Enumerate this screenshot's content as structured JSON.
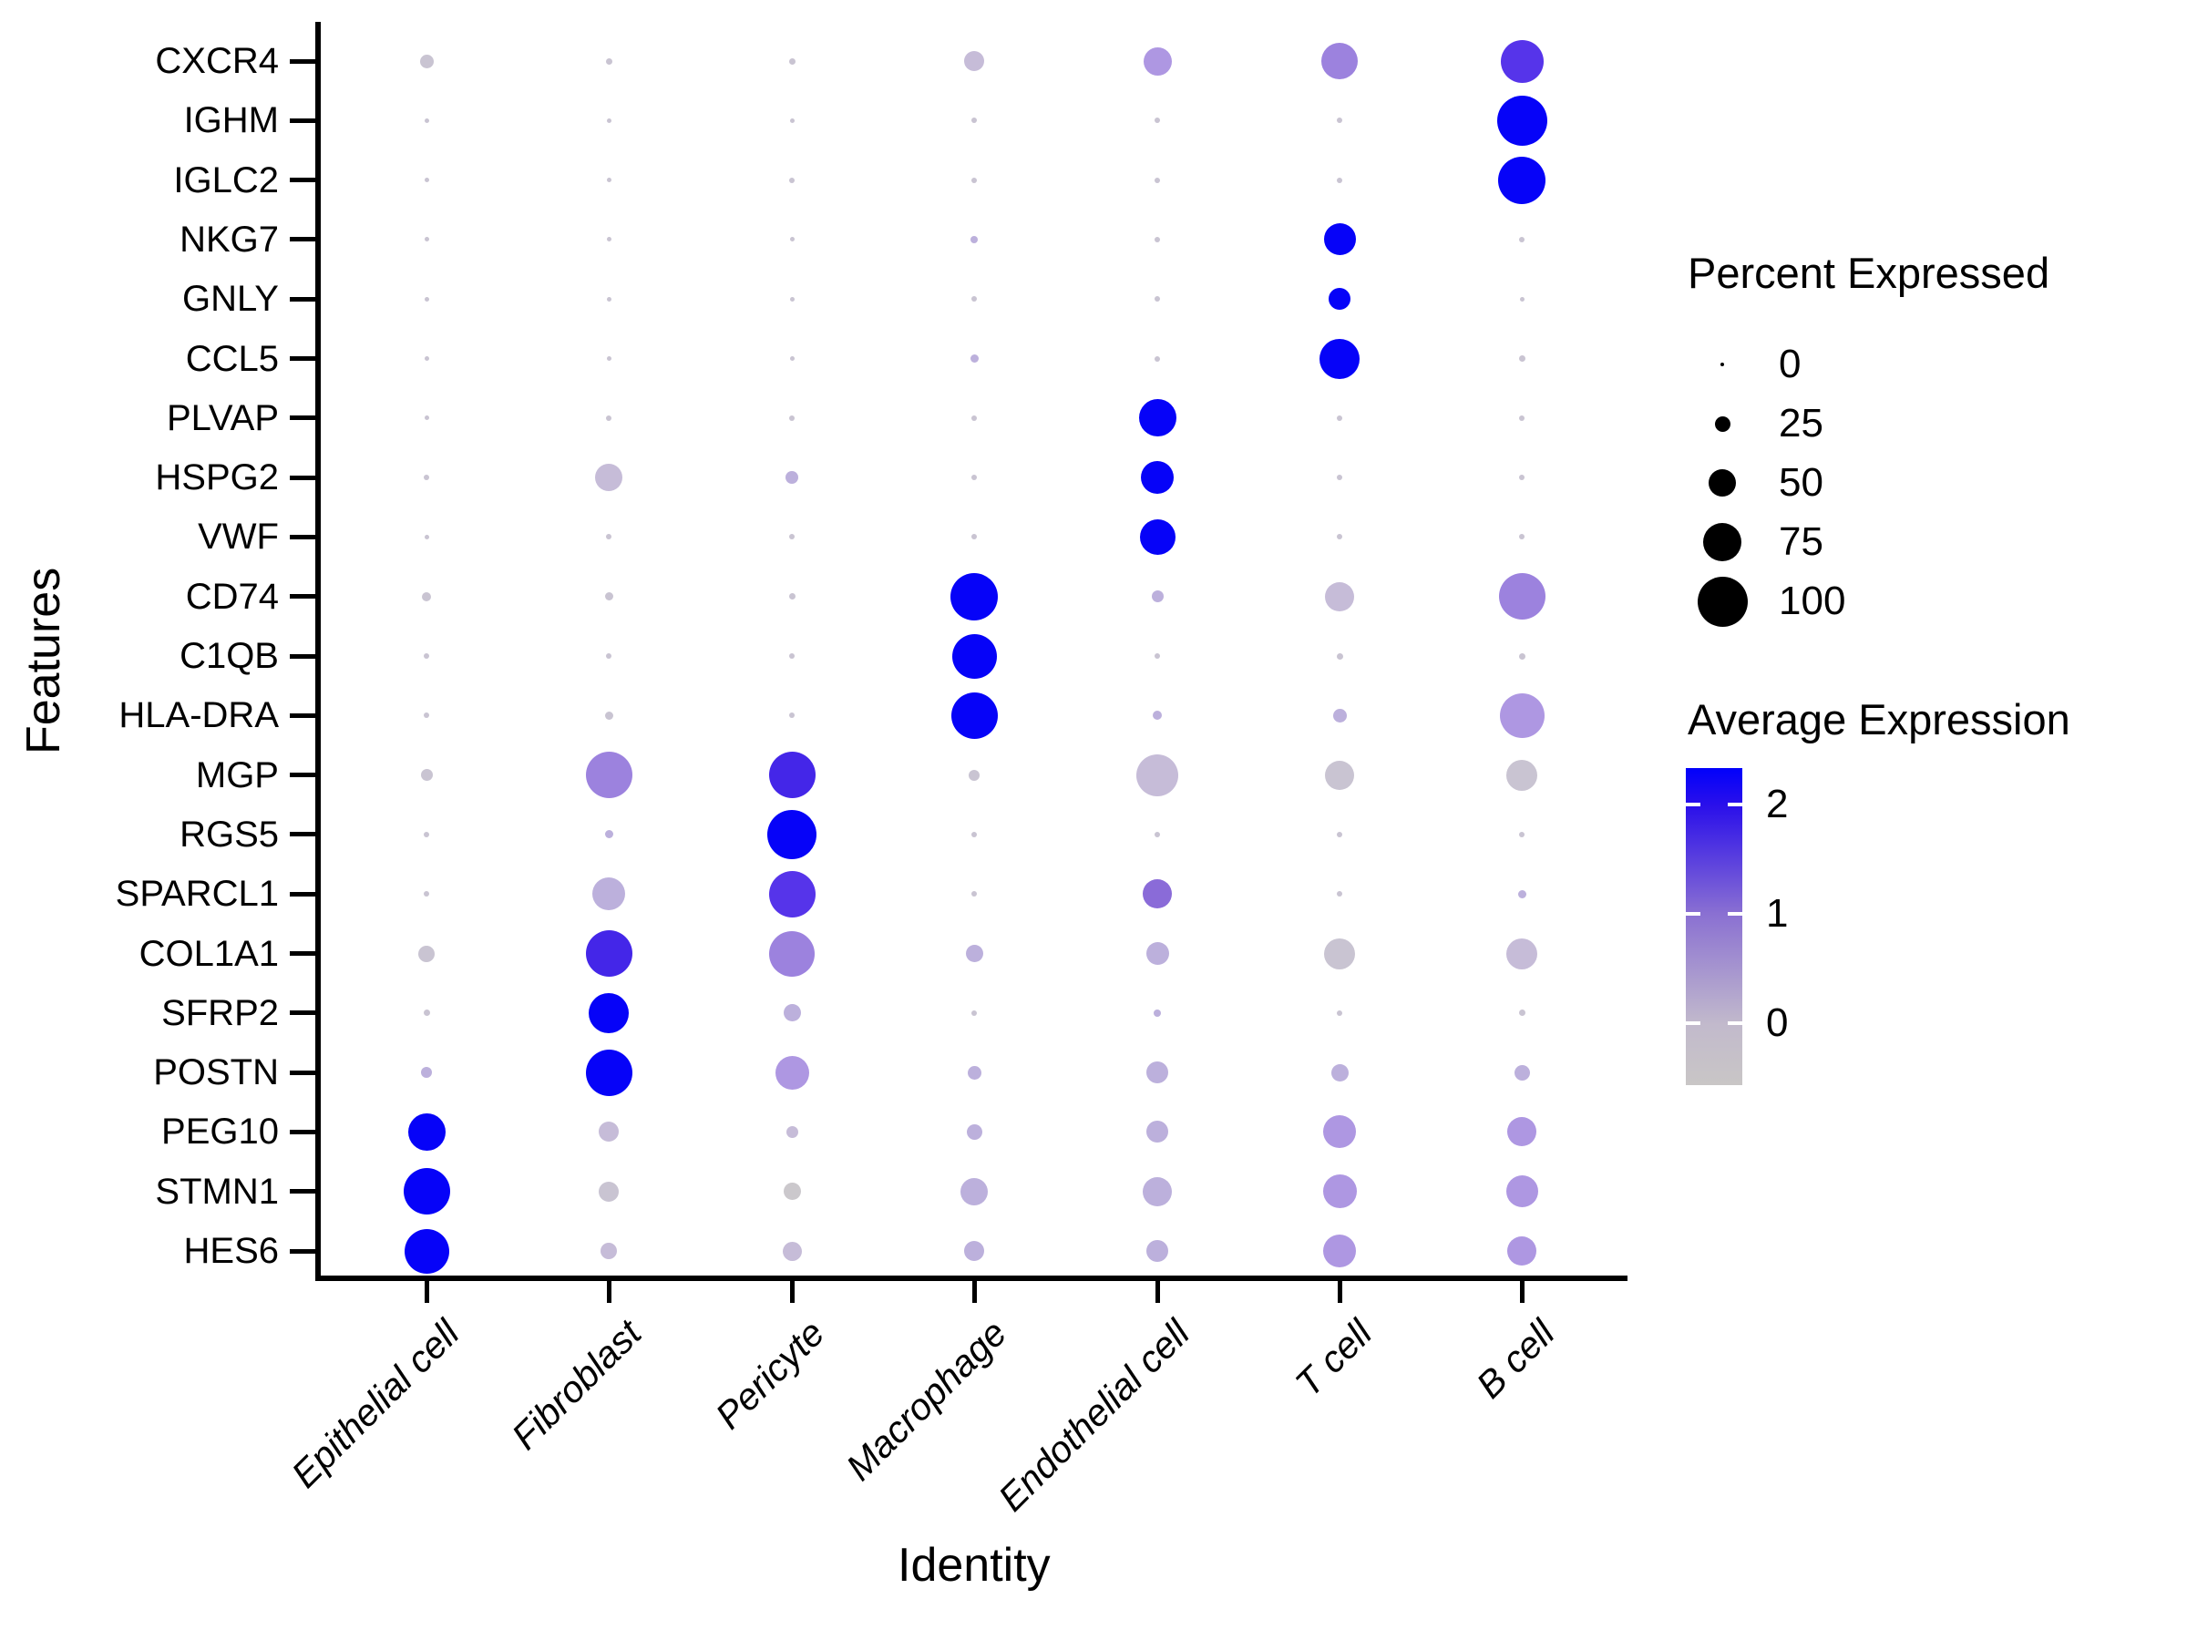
{
  "chart_data": {
    "type": "scatter",
    "subtype": "dotplot",
    "xlabel": "Identity",
    "ylabel": "Features",
    "categories": [
      "Epithelial cell",
      "Fibroblast",
      "Pericyte",
      "Macrophage",
      "Endothelial cell",
      "T cell",
      "B cell"
    ],
    "genes": [
      "CXCR4",
      "IGHM",
      "IGLC2",
      "NKG7",
      "GNLY",
      "CCL5",
      "PLVAP",
      "HSPG2",
      "VWF",
      "CD74",
      "C1QB",
      "HLA-DRA",
      "MGP",
      "RGS5",
      "SPARCL1",
      "COL1A1",
      "SFRP2",
      "POSTN",
      "PEG10",
      "STMN1",
      "HES6"
    ],
    "series": [
      {
        "gene": "CXCR4",
        "percent": [
          22,
          5,
          5,
          35,
          52,
          70,
          85
        ],
        "avg_expr_color": [
          "#C9C4D2",
          "#C9C4D2",
          "#C9C4D2",
          "#C6BCD8",
          "#AE97E2",
          "#9C82DE",
          "#5634EA"
        ]
      },
      {
        "gene": "IGHM",
        "percent": [
          2,
          2,
          2,
          3,
          3,
          4,
          100
        ],
        "avg_expr_color": [
          "#C9C4D2",
          "#C9C4D2",
          "#C9C4D2",
          "#C9C4D2",
          "#C9C4D2",
          "#C9C4D2",
          "#0603F8"
        ]
      },
      {
        "gene": "IGLC2",
        "percent": [
          2,
          2,
          3,
          3,
          3,
          4,
          95
        ],
        "avg_expr_color": [
          "#C9C4D2",
          "#C9C4D2",
          "#C9C4D2",
          "#C9C4D2",
          "#C9C4D2",
          "#C9C4D2",
          "#0603F8"
        ]
      },
      {
        "gene": "NKG7",
        "percent": [
          2,
          2,
          2,
          8,
          3,
          60,
          4
        ],
        "avg_expr_color": [
          "#C9C4D2",
          "#C9C4D2",
          "#C9C4D2",
          "#BCB0DC",
          "#C9C4D2",
          "#0603F8",
          "#C9C4D2"
        ]
      },
      {
        "gene": "GNLY",
        "percent": [
          2,
          2,
          2,
          3,
          3,
          40,
          2
        ],
        "avg_expr_color": [
          "#C9C4D2",
          "#C9C4D2",
          "#C9C4D2",
          "#C9C4D2",
          "#C9C4D2",
          "#0603F8",
          "#C9C4D2"
        ]
      },
      {
        "gene": "CCL5",
        "percent": [
          2,
          2,
          2,
          10,
          4,
          78,
          6
        ],
        "avg_expr_color": [
          "#C9C4D2",
          "#C9C4D2",
          "#C9C4D2",
          "#BCB0DC",
          "#C9C4D2",
          "#0603F8",
          "#C9C4D2"
        ]
      },
      {
        "gene": "PLVAP",
        "percent": [
          2,
          3,
          3,
          4,
          72,
          3,
          3
        ],
        "avg_expr_color": [
          "#C9C4D2",
          "#C9C4D2",
          "#C9C4D2",
          "#C9C4D2",
          "#0603F8",
          "#C9C4D2",
          "#C9C4D2"
        ]
      },
      {
        "gene": "HSPG2",
        "percent": [
          4,
          50,
          20,
          4,
          62,
          3,
          4
        ],
        "avg_expr_color": [
          "#C9C4D2",
          "#C6BCD8",
          "#BCB0DC",
          "#C9C4D2",
          "#0603F8",
          "#C9C4D2",
          "#C9C4D2"
        ]
      },
      {
        "gene": "VWF",
        "percent": [
          2,
          3,
          3,
          4,
          68,
          3,
          3
        ],
        "avg_expr_color": [
          "#C9C4D2",
          "#C9C4D2",
          "#C9C4D2",
          "#C9C4D2",
          "#0603F8",
          "#C9C4D2",
          "#C9C4D2"
        ]
      },
      {
        "gene": "CD74",
        "percent": [
          12,
          10,
          5,
          95,
          18,
          55,
          92
        ],
        "avg_expr_color": [
          "#C9C4D2",
          "#C9C4D2",
          "#C9C4D2",
          "#0603F8",
          "#BCB0DC",
          "#C6BCD8",
          "#9C82DE"
        ]
      },
      {
        "gene": "C1QB",
        "percent": [
          3,
          3,
          3,
          88,
          4,
          6,
          5
        ],
        "avg_expr_color": [
          "#C9C4D2",
          "#C9C4D2",
          "#C9C4D2",
          "#0603F8",
          "#C9C4D2",
          "#C9C4D2",
          "#C9C4D2"
        ]
      },
      {
        "gene": "HLA-DRA",
        "percent": [
          3,
          10,
          4,
          92,
          12,
          22,
          88
        ],
        "avg_expr_color": [
          "#C9C4D2",
          "#C9C4D2",
          "#C9C4D2",
          "#0603F8",
          "#BCB0DC",
          "#BCB0DC",
          "#AE97E2"
        ]
      },
      {
        "gene": "MGP",
        "percent": [
          18,
          92,
          92,
          15,
          82,
          55,
          58
        ],
        "avg_expr_color": [
          "#C9C4D2",
          "#9C82DE",
          "#4426E8",
          "#C9C4D2",
          "#C6BCD8",
          "#C9C4D2",
          "#C9C4D2"
        ]
      },
      {
        "gene": "RGS5",
        "percent": [
          3,
          10,
          98,
          3,
          4,
          3,
          3
        ],
        "avg_expr_color": [
          "#C9C4D2",
          "#BCB0DC",
          "#0603F8",
          "#C9C4D2",
          "#C9C4D2",
          "#C9C4D2",
          "#C9C4D2"
        ]
      },
      {
        "gene": "SPARCL1",
        "percent": [
          3,
          62,
          92,
          4,
          55,
          4,
          10
        ],
        "avg_expr_color": [
          "#C9C4D2",
          "#BCB0DC",
          "#5634EA",
          "#C9C4D2",
          "#8A6BD8",
          "#C9C4D2",
          "#BCB0DC"
        ]
      },
      {
        "gene": "COL1A1",
        "percent": [
          28,
          92,
          90,
          30,
          42,
          58,
          58
        ],
        "avg_expr_color": [
          "#C9C4D2",
          "#4426E8",
          "#9C82DE",
          "#BCB0DC",
          "#BCB0DC",
          "#C9C4D2",
          "#C6BCD8"
        ]
      },
      {
        "gene": "SFRP2",
        "percent": [
          5,
          78,
          30,
          4,
          8,
          4,
          6
        ],
        "avg_expr_color": [
          "#C9C4D2",
          "#0603F8",
          "#BCB0DC",
          "#C9C4D2",
          "#BCB0DC",
          "#C9C4D2",
          "#C9C4D2"
        ]
      },
      {
        "gene": "POSTN",
        "percent": [
          15,
          92,
          65,
          22,
          40,
          30,
          25
        ],
        "avg_expr_color": [
          "#BCB0DC",
          "#0603F8",
          "#AE97E2",
          "#BCB0DC",
          "#BCB0DC",
          "#BCB0DC",
          "#BCB0DC"
        ]
      },
      {
        "gene": "PEG10",
        "percent": [
          72,
          35,
          18,
          25,
          40,
          62,
          55
        ],
        "avg_expr_color": [
          "#0603F8",
          "#C6BCD8",
          "#C6BCD8",
          "#BCB0DC",
          "#BCB0DC",
          "#AE97E2",
          "#AE97E2"
        ]
      },
      {
        "gene": "STMN1",
        "percent": [
          92,
          35,
          30,
          50,
          55,
          65,
          60
        ],
        "avg_expr_color": [
          "#0603F8",
          "#C9C4D2",
          "#CBC8CC",
          "#BCB0DC",
          "#BCB0DC",
          "#AE97E2",
          "#AE97E2"
        ]
      },
      {
        "gene": "HES6",
        "percent": [
          88,
          28,
          33,
          35,
          40,
          62,
          55
        ],
        "avg_expr_color": [
          "#0603F8",
          "#C6BCD8",
          "#C6BCD8",
          "#BCB0DC",
          "#BCB0DC",
          "#AE97E2",
          "#AE97E2"
        ]
      }
    ],
    "legend_size": {
      "title": "Percent Expressed",
      "values": [
        "0",
        "25",
        "50",
        "75",
        "100"
      ],
      "key_color": "#000000"
    },
    "legend_color": {
      "title": "Average Expression",
      "ticks": [
        "2",
        "1",
        "0"
      ],
      "gradient_top": "#0101FB",
      "gradient_mid": "#8A70D2",
      "gradient_bottom": "#C9C6C6"
    },
    "layout": {
      "grid": false,
      "x_axis_rotation": 45,
      "legend_position": "right",
      "dot_color_low": "lightgrey",
      "dot_color_high": "blue"
    }
  }
}
